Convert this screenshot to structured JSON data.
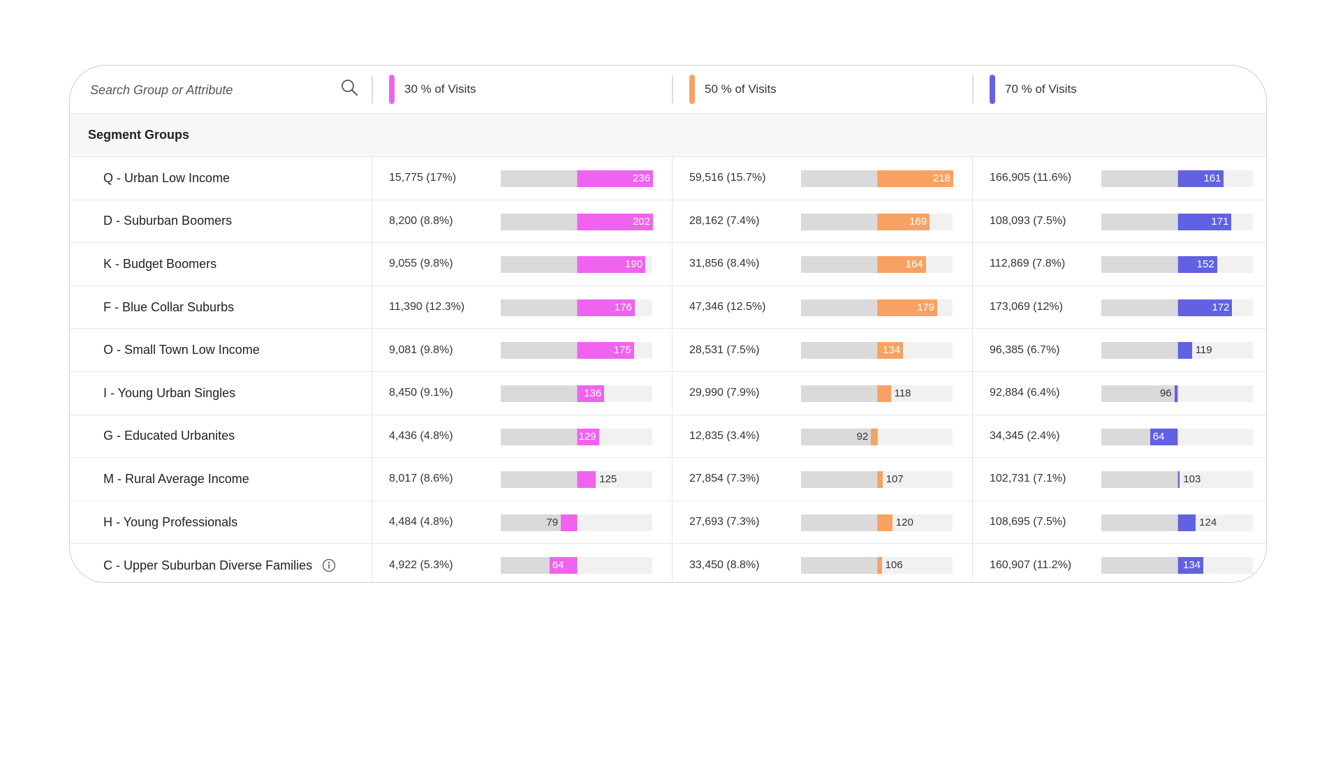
{
  "search": {
    "placeholder": "Search Group or Attribute"
  },
  "columns": [
    {
      "label": "30 % of Visits",
      "color": "#ef63ef"
    },
    {
      "label": "50 % of Visits",
      "color": "#f7a262"
    },
    {
      "label": "70 % of Visits",
      "color": "#6161e3"
    }
  ],
  "section_title": "Segment Groups",
  "rows": [
    {
      "name": "Q - Urban Low Income",
      "cells": [
        {
          "text": "15,775 (17%)",
          "index": 236
        },
        {
          "text": "59,516 (15.7%)",
          "index": 218
        },
        {
          "text": "166,905 (11.6%)",
          "index": 161
        }
      ]
    },
    {
      "name": "D - Suburban Boomers",
      "cells": [
        {
          "text": "8,200 (8.8%)",
          "index": 202
        },
        {
          "text": "28,162 (7.4%)",
          "index": 169
        },
        {
          "text": "108,093 (7.5%)",
          "index": 171
        }
      ]
    },
    {
      "name": "K - Budget Boomers",
      "cells": [
        {
          "text": "9,055 (9.8%)",
          "index": 190
        },
        {
          "text": "31,856 (8.4%)",
          "index": 164
        },
        {
          "text": "112,869 (7.8%)",
          "index": 152
        }
      ]
    },
    {
      "name": "F - Blue Collar Suburbs",
      "cells": [
        {
          "text": "11,390 (12.3%)",
          "index": 176
        },
        {
          "text": "47,346 (12.5%)",
          "index": 179
        },
        {
          "text": "173,069 (12%)",
          "index": 172
        }
      ]
    },
    {
      "name": "O - Small Town Low Income",
      "cells": [
        {
          "text": "9,081 (9.8%)",
          "index": 175
        },
        {
          "text": "28,531 (7.5%)",
          "index": 134
        },
        {
          "text": "96,385 (6.7%)",
          "index": 119
        }
      ]
    },
    {
      "name": "I - Young Urban Singles",
      "cells": [
        {
          "text": "8,450 (9.1%)",
          "index": 136
        },
        {
          "text": "29,990 (7.9%)",
          "index": 118
        },
        {
          "text": "92,884 (6.4%)",
          "index": 96
        }
      ]
    },
    {
      "name": "G - Educated Urbanites",
      "cells": [
        {
          "text": "4,436 (4.8%)",
          "index": 129
        },
        {
          "text": "12,835 (3.4%)",
          "index": 92
        },
        {
          "text": "34,345 (2.4%)",
          "index": 64
        }
      ]
    },
    {
      "name": "M - Rural Average Income",
      "cells": [
        {
          "text": "8,017 (8.6%)",
          "index": 125
        },
        {
          "text": "27,854 (7.3%)",
          "index": 107
        },
        {
          "text": "102,731 (7.1%)",
          "index": 103
        }
      ]
    },
    {
      "name": "H - Young Professionals",
      "cells": [
        {
          "text": "4,484 (4.8%)",
          "index": 79
        },
        {
          "text": "27,693 (7.3%)",
          "index": 120
        },
        {
          "text": "108,695 (7.5%)",
          "index": 124
        }
      ]
    },
    {
      "name": "C - Upper Suburban Diverse Families",
      "info": true,
      "cells": [
        {
          "text": "4,922 (5.3%)",
          "index": 64
        },
        {
          "text": "33,450 (8.8%)",
          "index": 106
        },
        {
          "text": "160,907 (11.2%)",
          "index": 134
        }
      ]
    }
  ]
}
